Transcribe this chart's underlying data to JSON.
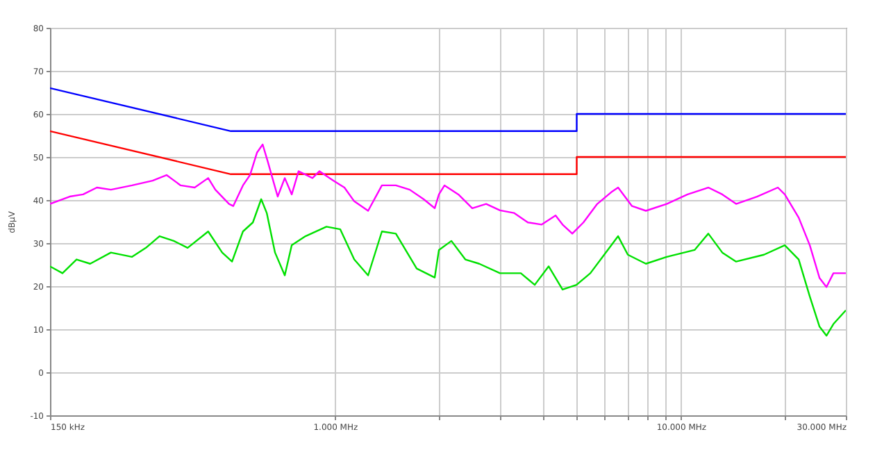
{
  "chart_data": {
    "type": "line",
    "ylabel": "dBµV",
    "log": "x",
    "grid": true,
    "marker": "none",
    "line_style": "solid",
    "xlim": [
      150,
      30000
    ],
    "ylim": [
      -10,
      80
    ],
    "xticks": [
      {
        "value": 150,
        "label": "150 kHz"
      },
      {
        "value": 1000,
        "label": "1.000 MHz"
      },
      {
        "value": 2000,
        "label": null
      },
      {
        "value": 3000,
        "label": null
      },
      {
        "value": 4000,
        "label": null
      },
      {
        "value": 5000,
        "label": null
      },
      {
        "value": 6000,
        "label": null
      },
      {
        "value": 7000,
        "label": null
      },
      {
        "value": 8000,
        "label": null
      },
      {
        "value": 9000,
        "label": null
      },
      {
        "value": 10000,
        "label": "10.000 MHz"
      },
      {
        "value": 20000,
        "label": null
      },
      {
        "value": 30000,
        "label": "30.000 MHz"
      }
    ],
    "yticks": [
      -10,
      0,
      10,
      20,
      30,
      40,
      50,
      60,
      70,
      80
    ],
    "series": [
      {
        "color": "#0000ff",
        "x": [
          150,
          500,
          5000,
          5000,
          30000
        ],
        "values": [
          66,
          56,
          56,
          60,
          60
        ]
      },
      {
        "color": "#ff0000",
        "x": [
          150,
          500,
          5000,
          5000,
          30000
        ],
        "values": [
          56,
          46,
          46,
          50,
          50
        ]
      },
      {
        "color": "#ff00ff",
        "x": [
          150,
          171,
          187,
          205,
          225,
          259,
          297,
          326,
          358,
          393,
          430,
          451,
          494,
          508,
          542,
          568,
          595,
          618,
          640,
          683,
          716,
          750,
          785,
          861,
          902,
          989,
          1065,
          1137,
          1247,
          1367,
          1500,
          1645,
          1804,
          1943,
          1998,
          2074,
          2274,
          2495,
          2736,
          3001,
          3292,
          3611,
          3961,
          4344,
          4550,
          4856,
          5229,
          5734,
          6289,
          6587,
          7225,
          7925,
          9104,
          10460,
          12010,
          13180,
          14450,
          16610,
          19080,
          19980,
          21920,
          23600,
          25180,
          26370,
          27620,
          30000
        ],
        "values": [
          39.1,
          40.8,
          41.3,
          42.9,
          42.4,
          43.4,
          44.5,
          45.8,
          43.4,
          42.9,
          45.1,
          42.4,
          39.1,
          38.6,
          43.4,
          45.8,
          51,
          52.9,
          48.8,
          40.8,
          45.1,
          41.3,
          46.7,
          45.1,
          46.7,
          44.5,
          42.9,
          39.7,
          37.5,
          43.4,
          43.4,
          42.4,
          40.2,
          38.1,
          41.3,
          43.4,
          41.3,
          38.1,
          39.1,
          37.6,
          37,
          34.8,
          34.3,
          36.4,
          34.3,
          32.2,
          34.8,
          39.1,
          41.8,
          42.9,
          38.6,
          37.5,
          39.1,
          41.3,
          42.9,
          41.3,
          39.1,
          40.8,
          42.9,
          41.3,
          35.9,
          29.5,
          21.9,
          19.8,
          23,
          23
        ]
      },
      {
        "color": "#00e000",
        "x": [
          150,
          163,
          179,
          196,
          225,
          259,
          284,
          311,
          342,
          375,
          430,
          472,
          504,
          542,
          579,
          612,
          635,
          671,
          716,
          750,
          822,
          945,
          1036,
          1137,
          1247,
          1367,
          1500,
          1723,
          1943,
          1998,
          2171,
          2382,
          2613,
          3001,
          3447,
          3781,
          4148,
          4550,
          4993,
          5475,
          6005,
          6587,
          7028,
          7925,
          9104,
          10960,
          12010,
          13180,
          14450,
          17390,
          19980,
          21920,
          23600,
          25180,
          26370,
          27620,
          30000
        ],
        "values": [
          24.6,
          23,
          26.2,
          25.2,
          27.8,
          26.8,
          28.9,
          31.6,
          30.5,
          28.9,
          32.7,
          27.8,
          25.7,
          32.7,
          34.8,
          40.2,
          37,
          27.8,
          22.5,
          29.5,
          31.6,
          33.8,
          33.2,
          26.2,
          22.5,
          32.7,
          32.2,
          24.1,
          22,
          28.4,
          30.5,
          26.2,
          25.2,
          23,
          23,
          20.3,
          24.6,
          19.2,
          20.3,
          23,
          27.3,
          31.6,
          27.3,
          25.2,
          26.8,
          28.4,
          32.2,
          27.8,
          25.7,
          27.3,
          29.5,
          26.2,
          17.6,
          10.6,
          8.5,
          11.2,
          14.4
        ]
      }
    ]
  }
}
